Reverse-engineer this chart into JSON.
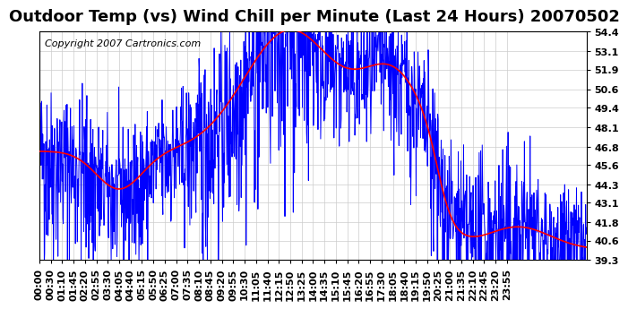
{
  "title": "Outdoor Temp (vs) Wind Chill per Minute (Last 24 Hours) 20070502",
  "copyright_text": "Copyright 2007 Cartronics.com",
  "yticks": [
    39.3,
    40.6,
    41.8,
    43.1,
    44.3,
    45.6,
    46.8,
    48.1,
    49.4,
    50.6,
    51.9,
    53.1,
    54.4
  ],
  "ylim": [
    39.3,
    54.4
  ],
  "background_color": "#ffffff",
  "plot_bg_color": "#ffffff",
  "grid_color": "#cccccc",
  "blue_color": "#0000ff",
  "red_color": "#ff0000",
  "title_fontsize": 13,
  "copyright_fontsize": 8,
  "tick_label_fontsize": 8,
  "num_minutes": 1440,
  "x_tick_interval": 30,
  "xtick_labels": [
    "00:00",
    "00:30",
    "01:10",
    "01:45",
    "02:20",
    "02:55",
    "03:30",
    "04:05",
    "04:40",
    "05:15",
    "05:50",
    "06:25",
    "07:00",
    "07:35",
    "08:10",
    "08:45",
    "09:20",
    "09:55",
    "10:30",
    "11:05",
    "11:40",
    "12:15",
    "12:50",
    "13:25",
    "14:00",
    "14:35",
    "15:10",
    "15:45",
    "16:20",
    "16:55",
    "17:30",
    "18:05",
    "18:40",
    "19:15",
    "19:50",
    "20:25",
    "21:00",
    "21:35",
    "22:10",
    "22:45",
    "23:20",
    "23:55"
  ]
}
